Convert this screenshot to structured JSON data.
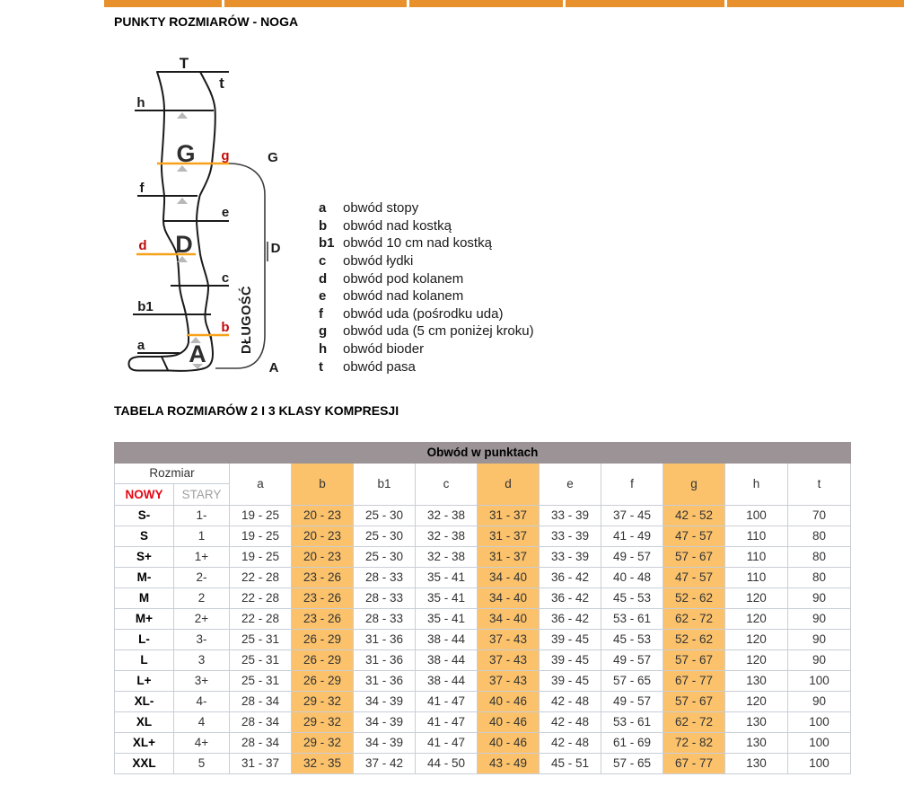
{
  "page": {
    "title": "PUNKTY ROZMIARÓW - NOGA",
    "table_title": "TABELA ROZMIARÓW 2 I 3 KLASY KOMPRESJI"
  },
  "top_nav": {
    "segment_count": 5
  },
  "colors": {
    "tab_orange": "#e8912c",
    "highlight_orange": "#fbc26b",
    "header_gray": "#9b9395",
    "nowy_red": "#e30613",
    "diagram_red": "#c10b0b",
    "diagram_line_orange": "#f7a11a"
  },
  "diagram": {
    "dlugosc": "DŁUGOŚĆ",
    "labels": {
      "T": "T",
      "t": "t",
      "h": "h",
      "g": "g",
      "f": "f",
      "e": "e",
      "d": "d",
      "c": "c",
      "b1": "b1",
      "b": "b",
      "a": "a",
      "bigG": "G",
      "bigD": "D",
      "bigA": "A",
      "bracketG": "G",
      "bracketD": "D",
      "bracketA": "A"
    }
  },
  "legend": {
    "items": [
      {
        "key": "a",
        "text": "obwód stopy"
      },
      {
        "key": "b",
        "text": "obwód nad kostką"
      },
      {
        "key": "b1",
        "text": "obwód 10 cm nad kostką"
      },
      {
        "key": "c",
        "text": "obwód łydki"
      },
      {
        "key": "d",
        "text": "obwód pod kolanem"
      },
      {
        "key": "e",
        "text": "obwód nad kolanem"
      },
      {
        "key": "f",
        "text": "obwód uda (pośrodku uda)"
      },
      {
        "key": "g",
        "text": "obwód uda (5 cm poniżej kroku)"
      },
      {
        "key": "h",
        "text": "obwód bioder"
      },
      {
        "key": "t",
        "text": "obwód pasa"
      }
    ]
  },
  "table": {
    "group_header": "Obwód w punktach",
    "size_header": "Rozmiar",
    "new_label": "NOWY",
    "old_label": "STARY",
    "measure_columns": [
      "a",
      "b",
      "b1",
      "c",
      "d",
      "e",
      "f",
      "g",
      "h",
      "t"
    ],
    "highlight_columns": [
      "b",
      "d",
      "g"
    ],
    "rows": [
      {
        "nowy": "S-",
        "stary": "1-",
        "values": [
          "19 - 25",
          "20 - 23",
          "25 - 30",
          "32 - 38",
          "31 - 37",
          "33 - 39",
          "37 - 45",
          "42 - 52",
          "100",
          "70"
        ]
      },
      {
        "nowy": "S",
        "stary": "1",
        "values": [
          "19 - 25",
          "20 - 23",
          "25 - 30",
          "32 - 38",
          "31 - 37",
          "33 - 39",
          "41 - 49",
          "47 - 57",
          "110",
          "80"
        ]
      },
      {
        "nowy": "S+",
        "stary": "1+",
        "values": [
          "19 - 25",
          "20 - 23",
          "25 - 30",
          "32 - 38",
          "31 - 37",
          "33 - 39",
          "49 - 57",
          "57 - 67",
          "110",
          "80"
        ]
      },
      {
        "nowy": "M-",
        "stary": "2-",
        "values": [
          "22 - 28",
          "23 - 26",
          "28 - 33",
          "35 - 41",
          "34 - 40",
          "36 - 42",
          "40 - 48",
          "47 - 57",
          "110",
          "80"
        ]
      },
      {
        "nowy": "M",
        "stary": "2",
        "values": [
          "22 - 28",
          "23 - 26",
          "28 - 33",
          "35 - 41",
          "34 - 40",
          "36 - 42",
          "45 - 53",
          "52 - 62",
          "120",
          "90"
        ]
      },
      {
        "nowy": "M+",
        "stary": "2+",
        "values": [
          "22 - 28",
          "23 - 26",
          "28 - 33",
          "35 - 41",
          "34 - 40",
          "36 - 42",
          "53 - 61",
          "62 - 72",
          "120",
          "90"
        ]
      },
      {
        "nowy": "L-",
        "stary": "3-",
        "values": [
          "25 - 31",
          "26 - 29",
          "31 - 36",
          "38 - 44",
          "37 - 43",
          "39 - 45",
          "45 - 53",
          "52 - 62",
          "120",
          "90"
        ]
      },
      {
        "nowy": "L",
        "stary": "3",
        "values": [
          "25 - 31",
          "26 - 29",
          "31 - 36",
          "38 - 44",
          "37 - 43",
          "39 - 45",
          "49 - 57",
          "57 - 67",
          "120",
          "90"
        ]
      },
      {
        "nowy": "L+",
        "stary": "3+",
        "values": [
          "25 - 31",
          "26 - 29",
          "31 - 36",
          "38 - 44",
          "37 - 43",
          "39 - 45",
          "57 - 65",
          "67 - 77",
          "130",
          "100"
        ]
      },
      {
        "nowy": "XL-",
        "stary": "4-",
        "values": [
          "28 - 34",
          "29 - 32",
          "34 - 39",
          "41 - 47",
          "40 - 46",
          "42 - 48",
          "49 - 57",
          "57 - 67",
          "120",
          "90"
        ]
      },
      {
        "nowy": "XL",
        "stary": "4",
        "values": [
          "28 - 34",
          "29 - 32",
          "34 - 39",
          "41 - 47",
          "40 - 46",
          "42 - 48",
          "53 - 61",
          "62 - 72",
          "130",
          "100"
        ]
      },
      {
        "nowy": "XL+",
        "stary": "4+",
        "values": [
          "28 - 34",
          "29 - 32",
          "34 - 39",
          "41 - 47",
          "40 - 46",
          "42 - 48",
          "61 - 69",
          "72 - 82",
          "130",
          "100"
        ]
      },
      {
        "nowy": "XXL",
        "stary": "5",
        "values": [
          "31 - 37",
          "32 - 35",
          "37 - 42",
          "44 - 50",
          "43 - 49",
          "45 - 51",
          "57 - 65",
          "67 - 77",
          "130",
          "100"
        ]
      }
    ]
  }
}
